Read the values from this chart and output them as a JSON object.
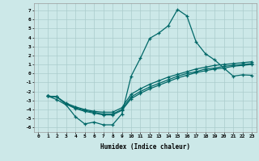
{
  "xlabel": "Humidex (Indice chaleur)",
  "background_color": "#cce8e8",
  "grid_color": "#aacccc",
  "line_color": "#006868",
  "xlim": [
    -0.5,
    23.5
  ],
  "ylim": [
    -6.5,
    7.8
  ],
  "xticks": [
    0,
    1,
    2,
    3,
    4,
    5,
    6,
    7,
    8,
    9,
    10,
    11,
    12,
    13,
    14,
    15,
    16,
    17,
    18,
    19,
    20,
    21,
    22,
    23
  ],
  "yticks": [
    -6,
    -5,
    -4,
    -3,
    -2,
    -1,
    0,
    1,
    2,
    3,
    4,
    5,
    6,
    7
  ],
  "curve1_x": [
    1,
    2,
    3,
    4,
    5,
    6,
    7,
    8,
    9,
    10,
    11,
    12,
    13,
    14,
    15,
    16,
    17,
    18,
    19,
    20,
    21,
    22,
    23
  ],
  "curve1_y": [
    -2.5,
    -2.9,
    -3.5,
    -4.8,
    -5.6,
    -5.4,
    -5.7,
    -5.7,
    -4.5,
    -0.3,
    1.7,
    3.9,
    4.5,
    5.3,
    7.1,
    6.4,
    3.5,
    2.2,
    1.5,
    0.6,
    -0.3,
    -0.15,
    -0.2
  ],
  "curve2_x": [
    1,
    2,
    3,
    4,
    5,
    6,
    7,
    8,
    9,
    10,
    11,
    12,
    13,
    14,
    15,
    16,
    17,
    18,
    19,
    20,
    21,
    22,
    23
  ],
  "curve2_y": [
    -2.5,
    -2.6,
    -3.3,
    -3.7,
    -4.0,
    -4.2,
    -4.3,
    -4.3,
    -3.8,
    -2.3,
    -1.7,
    -1.2,
    -0.8,
    -0.4,
    -0.1,
    0.2,
    0.5,
    0.7,
    0.9,
    1.0,
    1.1,
    1.2,
    1.3
  ],
  "curve3_x": [
    1,
    2,
    3,
    4,
    5,
    6,
    7,
    8,
    9,
    10,
    11,
    12,
    13,
    14,
    15,
    16,
    17,
    18,
    19,
    20,
    21,
    22,
    23
  ],
  "curve3_y": [
    -2.5,
    -2.6,
    -3.4,
    -3.8,
    -4.1,
    -4.3,
    -4.5,
    -4.5,
    -4.0,
    -2.6,
    -2.0,
    -1.5,
    -1.1,
    -0.7,
    -0.3,
    0.0,
    0.2,
    0.5,
    0.6,
    0.8,
    0.9,
    1.0,
    1.1
  ],
  "curve4_x": [
    1,
    2,
    3,
    4,
    5,
    6,
    7,
    8,
    9,
    10,
    11,
    12,
    13,
    14,
    15,
    16,
    17,
    18,
    19,
    20,
    21,
    22,
    23
  ],
  "curve4_y": [
    -2.5,
    -2.6,
    -3.4,
    -3.9,
    -4.2,
    -4.4,
    -4.6,
    -4.6,
    -4.1,
    -2.8,
    -2.2,
    -1.7,
    -1.3,
    -0.9,
    -0.5,
    -0.2,
    0.1,
    0.3,
    0.5,
    0.6,
    0.8,
    0.9,
    1.0
  ]
}
